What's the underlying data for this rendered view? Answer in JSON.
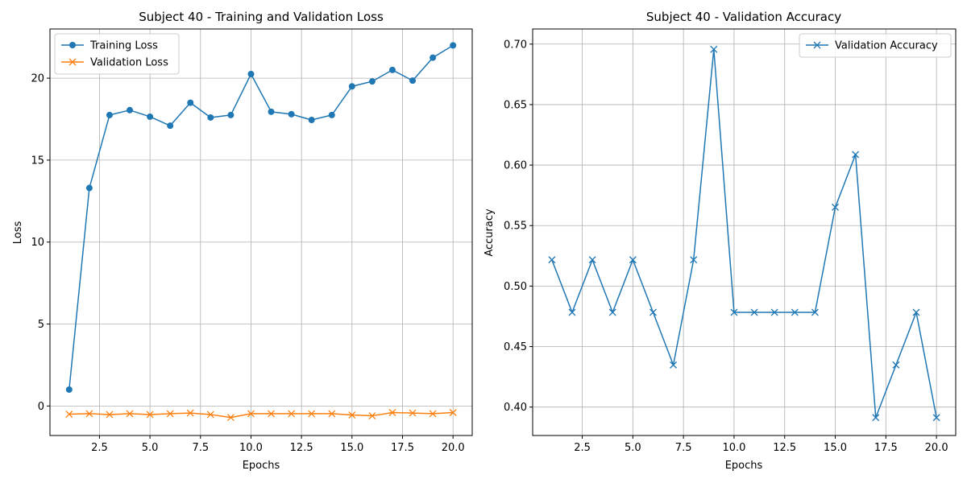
{
  "chart_data": [
    {
      "type": "line",
      "title": "Subject 40 - Training and Validation Loss",
      "xlabel": "Epochs",
      "ylabel": "Loss",
      "xlim": [
        0.05,
        20.95
      ],
      "ylim": [
        -1.8,
        23.0
      ],
      "xticks": [
        2.5,
        5.0,
        7.5,
        10.0,
        12.5,
        15.0,
        17.5,
        20.0
      ],
      "xtick_labels": [
        "2.5",
        "5.0",
        "7.5",
        "10.0",
        "12.5",
        "15.0",
        "17.5",
        "20.0"
      ],
      "yticks": [
        0,
        5,
        10,
        15,
        20
      ],
      "ytick_labels": [
        "0",
        "5",
        "10",
        "15",
        "20"
      ],
      "grid": true,
      "legend_position": "top-left",
      "x": [
        1,
        2,
        3,
        4,
        5,
        6,
        7,
        8,
        9,
        10,
        11,
        12,
        13,
        14,
        15,
        16,
        17,
        18,
        19,
        20
      ],
      "series": [
        {
          "name": "Training Loss",
          "color": "#1f77b4",
          "marker": "circle",
          "values": [
            1.0,
            13.3,
            17.75,
            18.05,
            17.65,
            17.1,
            18.5,
            17.6,
            17.75,
            20.25,
            17.95,
            17.8,
            17.45,
            17.75,
            19.5,
            19.8,
            20.5,
            19.85,
            21.25,
            22.0
          ]
        },
        {
          "name": "Validation Loss",
          "color": "#ff7f0e",
          "marker": "x",
          "values": [
            -0.5,
            -0.47,
            -0.52,
            -0.47,
            -0.52,
            -0.47,
            -0.43,
            -0.52,
            -0.7,
            -0.47,
            -0.47,
            -0.47,
            -0.47,
            -0.47,
            -0.55,
            -0.6,
            -0.4,
            -0.43,
            -0.47,
            -0.4
          ]
        }
      ]
    },
    {
      "type": "line",
      "title": "Subject 40 - Validation Accuracy",
      "xlabel": "Epochs",
      "ylabel": "Accuracy",
      "xlim": [
        0.05,
        20.95
      ],
      "ylim": [
        0.3765,
        0.7125
      ],
      "xticks": [
        2.5,
        5.0,
        7.5,
        10.0,
        12.5,
        15.0,
        17.5,
        20.0
      ],
      "xtick_labels": [
        "2.5",
        "5.0",
        "7.5",
        "10.0",
        "12.5",
        "15.0",
        "17.5",
        "20.0"
      ],
      "yticks": [
        0.4,
        0.45,
        0.5,
        0.55,
        0.6,
        0.65,
        0.7
      ],
      "ytick_labels": [
        "0.40",
        "0.45",
        "0.50",
        "0.55",
        "0.60",
        "0.65",
        "0.70"
      ],
      "grid": true,
      "legend_position": "top-right",
      "x": [
        1,
        2,
        3,
        4,
        5,
        6,
        7,
        8,
        9,
        10,
        11,
        12,
        13,
        14,
        15,
        16,
        17,
        18,
        19,
        20
      ],
      "series": [
        {
          "name": "Validation Accuracy",
          "color": "#1f77b4",
          "marker": "x",
          "values": [
            0.5217,
            0.4783,
            0.5217,
            0.4783,
            0.5217,
            0.4783,
            0.4348,
            0.5217,
            0.6957,
            0.4783,
            0.4783,
            0.4783,
            0.4783,
            0.4783,
            0.5652,
            0.6087,
            0.3913,
            0.4348,
            0.4783,
            0.3913
          ]
        }
      ]
    }
  ]
}
